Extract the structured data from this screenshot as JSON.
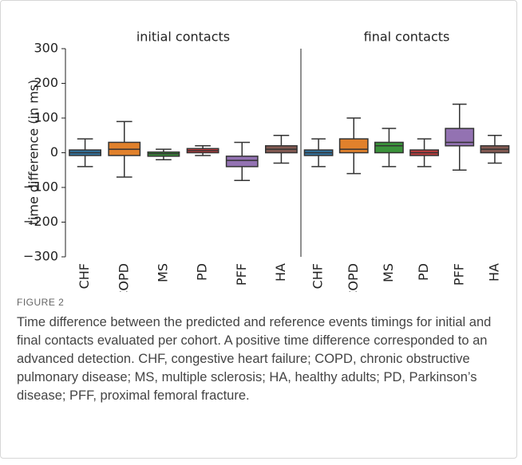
{
  "chart_data": [
    {
      "type": "box",
      "title": "initial contacts",
      "y_label": "time difference (in ms)",
      "categories": [
        "CHF",
        "COPD",
        "MS",
        "PD",
        "PFF",
        "HA"
      ],
      "colors": [
        "#3274a1",
        "#e1812c",
        "#3a923a",
        "#c03d3e",
        "#9372b2",
        "#845b53"
      ],
      "whisker_low": [
        -40,
        -70,
        -20,
        -8,
        -80,
        -30
      ],
      "q1": [
        -8,
        -8,
        -10,
        0,
        -40,
        0
      ],
      "median": [
        0,
        10,
        -3,
        6,
        -22,
        10
      ],
      "q3": [
        8,
        30,
        2,
        12,
        -10,
        20
      ],
      "whisker_high": [
        40,
        90,
        10,
        20,
        30,
        50
      ],
      "ylim": [
        -300,
        300
      ],
      "yticks": [
        {
          "value": -300,
          "label": "−300"
        },
        {
          "value": -200,
          "label": "−200"
        },
        {
          "value": -100,
          "label": "−100"
        },
        0,
        100,
        200,
        300
      ]
    },
    {
      "type": "box",
      "title": "final contacts",
      "categories": [
        "CHF",
        "COPD",
        "MS",
        "PD",
        "PFF",
        "HA"
      ],
      "colors": [
        "#3274a1",
        "#e1812c",
        "#3a923a",
        "#c03d3e",
        "#9372b2",
        "#845b53"
      ],
      "whisker_low": [
        -40,
        -60,
        -40,
        -40,
        -50,
        -30
      ],
      "q1": [
        -8,
        0,
        0,
        -8,
        20,
        0
      ],
      "median": [
        0,
        10,
        20,
        0,
        30,
        10
      ],
      "q3": [
        8,
        40,
        30,
        8,
        70,
        20
      ],
      "whisker_high": [
        40,
        100,
        70,
        40,
        140,
        50
      ],
      "ylim": [
        -300,
        300
      ]
    }
  ],
  "figure_label": "FIGURE 2",
  "caption": "Time difference between the predicted and reference events timings for initial and final contacts evaluated per cohort. A positive time difference corresponded to an advanced detection. CHF, congestive heart failure; COPD, chronic obstructive pulmonary disease; MS, multiple sclerosis; HA, healthy adults; PD, Parkinson’s disease; PFF, proximal femoral fracture."
}
